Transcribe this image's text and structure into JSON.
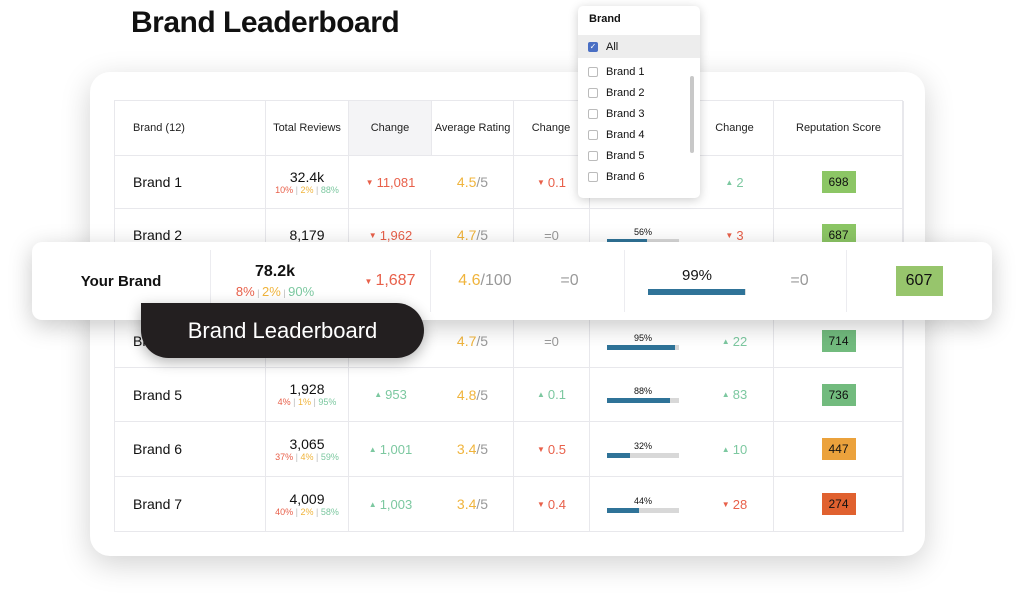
{
  "page_title": "Brand Leaderboard",
  "headers": {
    "brand": "Brand (12)",
    "total_reviews": "Total Reviews",
    "change1": "Change",
    "avg_rating": "Average Rating",
    "change2": "Change",
    "change3": "Change",
    "reputation": "Reputation Score"
  },
  "rows": [
    {
      "name": "Brand 1",
      "total": "32.4k",
      "neg": "10%",
      "neu": "2%",
      "pos": "88%",
      "rev_change": "11,081",
      "rev_dir": "down",
      "rating": "4.5",
      "rating_max": "/5",
      "rating_change": "0.1",
      "rating_dir": "down",
      "pct": null,
      "pct_change": "2",
      "pct_dir": "up",
      "score": "698",
      "score_color": "#8cc665"
    },
    {
      "name": "Brand 2",
      "total": "8,179",
      "neg": "",
      "neu": "",
      "pos": "",
      "rev_change": "1,962",
      "rev_dir": "down",
      "rating": "4.7",
      "rating_max": "/5",
      "rating_change": "0",
      "rating_dir": "eq",
      "pct": "56%",
      "pct_value": 56,
      "pct_change": "3",
      "pct_dir": "down",
      "score": "687",
      "score_color": "#8cc665"
    },
    {
      "name": "Brand 4",
      "total": "",
      "neg": "",
      "neu": "",
      "pos": "",
      "rev_change": "",
      "rev_dir": "",
      "rating": "4.7",
      "rating_max": "/5",
      "rating_change": "0",
      "rating_dir": "eq",
      "pct": "95%",
      "pct_value": 95,
      "pct_change": "22",
      "pct_dir": "up",
      "score": "714",
      "score_color": "#72bb7e"
    },
    {
      "name": "Brand 5",
      "total": "1,928",
      "neg": "4%",
      "neu": "1%",
      "pos": "95%",
      "rev_change": "953",
      "rev_dir": "up",
      "rating": "4.8",
      "rating_max": "/5",
      "rating_change": "0.1",
      "rating_dir": "up",
      "pct": "88%",
      "pct_value": 88,
      "pct_change": "83",
      "pct_dir": "up",
      "score": "736",
      "score_color": "#72bb7e"
    },
    {
      "name": "Brand 6",
      "total": "3,065",
      "neg": "37%",
      "neu": "4%",
      "pos": "59%",
      "rev_change": "1,001",
      "rev_dir": "up",
      "rating": "3.4",
      "rating_max": "/5",
      "rating_change": "0.5",
      "rating_dir": "down",
      "pct": "32%",
      "pct_value": 32,
      "pct_change": "10",
      "pct_dir": "up",
      "score": "447",
      "score_color": "#eba23c"
    },
    {
      "name": "Brand 7",
      "total": "4,009",
      "neg": "40%",
      "neu": "2%",
      "pos": "58%",
      "rev_change": "1,003",
      "rev_dir": "up",
      "rating": "3.4",
      "rating_max": "/5",
      "rating_change": "0.4",
      "rating_dir": "down",
      "pct": "44%",
      "pct_value": 44,
      "pct_change": "28",
      "pct_dir": "down",
      "score": "274",
      "score_color": "#e0612f"
    }
  ],
  "your_brand": {
    "name": "Your Brand",
    "total": "78.2k",
    "neg": "8%",
    "neu": "2%",
    "pos": "90%",
    "rev_change": "1,687",
    "rating": "4.6",
    "rating_max": "/100",
    "rating_change": "=0",
    "pct": "99%",
    "pct_value": 99,
    "pct_change": "=0",
    "score": "607",
    "score_color": "#97c56c"
  },
  "tooltip": "Brand Leaderboard",
  "dropdown": {
    "title": "Brand",
    "items": [
      {
        "label": "All",
        "checked": true
      },
      {
        "label": "Brand 1",
        "checked": false
      },
      {
        "label": "Brand 2",
        "checked": false
      },
      {
        "label": "Brand 3",
        "checked": false
      },
      {
        "label": "Brand 4",
        "checked": false
      },
      {
        "label": "Brand 5",
        "checked": false
      },
      {
        "label": "Brand 6",
        "checked": false
      }
    ]
  }
}
